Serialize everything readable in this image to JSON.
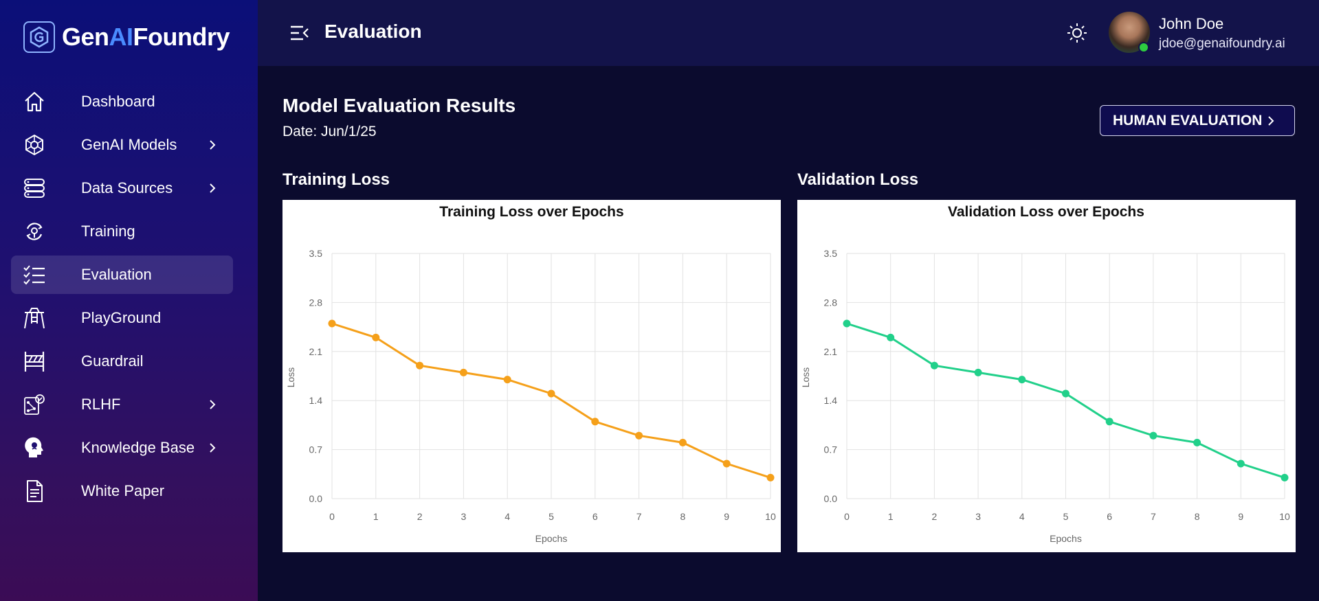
{
  "brand": {
    "prefix": "Gen",
    "ai": "AI",
    "suffix": "Foundry"
  },
  "sidebar": {
    "items": [
      {
        "label": "Dashboard",
        "icon": "home-icon",
        "has_submenu": false,
        "active": false
      },
      {
        "label": "GenAI Models",
        "icon": "network-icon",
        "has_submenu": true,
        "active": false
      },
      {
        "label": "Data Sources",
        "icon": "database-icon",
        "has_submenu": true,
        "active": false
      },
      {
        "label": "Training",
        "icon": "training-icon",
        "has_submenu": false,
        "active": false
      },
      {
        "label": "Evaluation",
        "icon": "checklist-icon",
        "has_submenu": false,
        "active": true
      },
      {
        "label": "PlayGround",
        "icon": "playground-icon",
        "has_submenu": false,
        "active": false
      },
      {
        "label": "Guardrail",
        "icon": "barrier-icon",
        "has_submenu": false,
        "active": false
      },
      {
        "label": "RLHF",
        "icon": "rlhf-icon",
        "has_submenu": true,
        "active": false
      },
      {
        "label": "Knowledge Base",
        "icon": "brain-head-icon",
        "has_submenu": true,
        "active": false
      },
      {
        "label": "White Paper",
        "icon": "document-icon",
        "has_submenu": false,
        "active": false
      }
    ]
  },
  "header": {
    "title": "Evaluation",
    "user": {
      "name": "John Doe",
      "email": "jdoe@genaifoundry.ai",
      "status_color": "#2ecc40"
    }
  },
  "main": {
    "title": "Model Evaluation Results",
    "date": "Date: Jun/1/25",
    "human_eval_button": "HUMAN EVALUATION",
    "training_section": "Training Loss",
    "validation_section": "Validation Loss"
  },
  "chart_data": [
    {
      "type": "line",
      "title": "Training Loss over Epochs",
      "xlabel": "Epochs",
      "ylabel": "Loss",
      "x": [
        0,
        1,
        2,
        3,
        4,
        5,
        6,
        7,
        8,
        9,
        10
      ],
      "series": [
        {
          "values": [
            2.5,
            2.3,
            1.9,
            1.8,
            1.7,
            1.5,
            1.1,
            0.9,
            0.8,
            0.5,
            0.3
          ]
        }
      ],
      "yticks": [
        "0.0",
        "0.7",
        "1.4",
        "2.1",
        "2.8",
        "3.5"
      ],
      "ylim": [
        0,
        3.5
      ],
      "xlim": [
        0,
        10
      ],
      "color": "#f5a01a",
      "grid": true
    },
    {
      "type": "line",
      "title": "Validation Loss over Epochs",
      "xlabel": "Epochs",
      "ylabel": "Loss",
      "x": [
        0,
        1,
        2,
        3,
        4,
        5,
        6,
        7,
        8,
        9,
        10
      ],
      "series": [
        {
          "values": [
            2.5,
            2.3,
            1.9,
            1.8,
            1.7,
            1.5,
            1.1,
            0.9,
            0.8,
            0.5,
            0.3
          ]
        }
      ],
      "yticks": [
        "0.0",
        "0.7",
        "1.4",
        "2.1",
        "2.8",
        "3.5"
      ],
      "ylim": [
        0,
        3.5
      ],
      "xlim": [
        0,
        10
      ],
      "color": "#21d08a",
      "grid": true
    }
  ]
}
